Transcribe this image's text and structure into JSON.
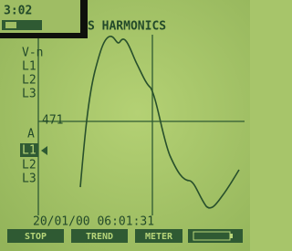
{
  "inset": {
    "time": "3:02"
  },
  "header": {
    "title": "S HARMONICS"
  },
  "channels": {
    "voltage_label": "V-n",
    "voltage_phases": [
      "L1",
      "L2",
      "L3"
    ],
    "scale": "471",
    "current_label": "A",
    "current_phases": [
      "L1",
      "L2",
      "L3"
    ]
  },
  "footer": {
    "timestamp": "20/01/00 06:01:31",
    "buttons": [
      "STOP",
      "TREND",
      "METER"
    ]
  }
}
